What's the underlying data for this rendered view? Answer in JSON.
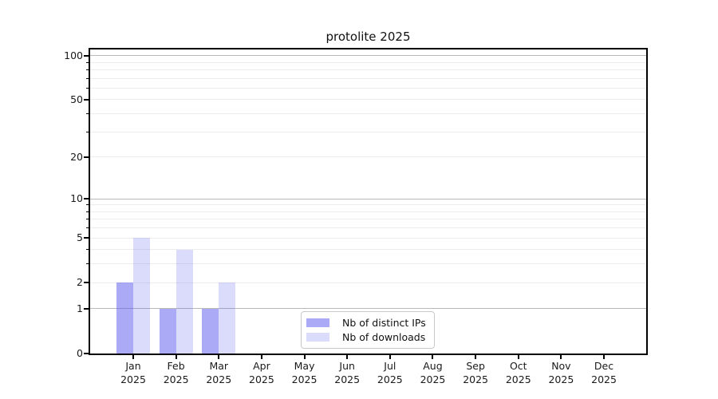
{
  "chart_data": {
    "type": "bar",
    "title": "protolite 2025",
    "x_months": [
      "Jan",
      "Feb",
      "Mar",
      "Apr",
      "May",
      "Jun",
      "Jul",
      "Aug",
      "Sep",
      "Oct",
      "Nov",
      "Dec"
    ],
    "x_year": "2025",
    "series": [
      {
        "name": "Nb of distinct IPs",
        "color": "rgba(85,85,238,0.5)",
        "values": [
          2,
          1,
          1,
          0,
          0,
          0,
          0,
          0,
          0,
          0,
          0,
          0
        ]
      },
      {
        "name": "Nb of downloads",
        "color": "rgba(85,85,238,0.21)",
        "values": [
          5,
          4,
          2,
          0,
          0,
          0,
          0,
          0,
          0,
          0,
          0,
          0
        ]
      }
    ],
    "y_axis": {
      "scale": "log1p",
      "min": 0,
      "max": 110,
      "labeled_ticks": [
        0,
        1,
        2,
        5,
        10,
        20,
        50,
        100
      ],
      "minor_ticks": [
        3,
        4,
        6,
        7,
        8,
        9,
        30,
        40,
        60,
        70,
        80,
        90
      ],
      "major_gridlines": [
        1,
        10,
        100
      ]
    },
    "legend_position": "lower center",
    "grid": true
  },
  "colors": {
    "major_grid": "#b9b9b9",
    "minor_grid": "#ececec",
    "axis": "#000000",
    "text": "#1a1a1a"
  }
}
